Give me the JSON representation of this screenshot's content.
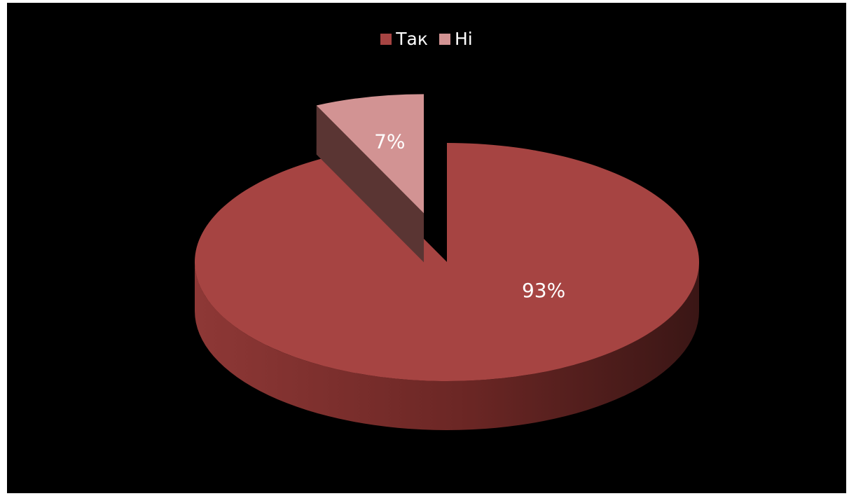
{
  "chart_data": {
    "type": "pie",
    "title": "",
    "categories": [
      "Так",
      "Ні"
    ],
    "values": [
      93,
      7
    ],
    "data_labels": [
      "93%",
      "7%"
    ],
    "legend_position": "top",
    "exploded": "Ні",
    "three_d": true
  },
  "colors": {
    "background": "#000000",
    "slice_top": [
      "#a64442",
      "#d29393"
    ],
    "slice_side": [
      "#6e2826",
      "#5a3533"
    ],
    "label_text": "#ffffff"
  }
}
